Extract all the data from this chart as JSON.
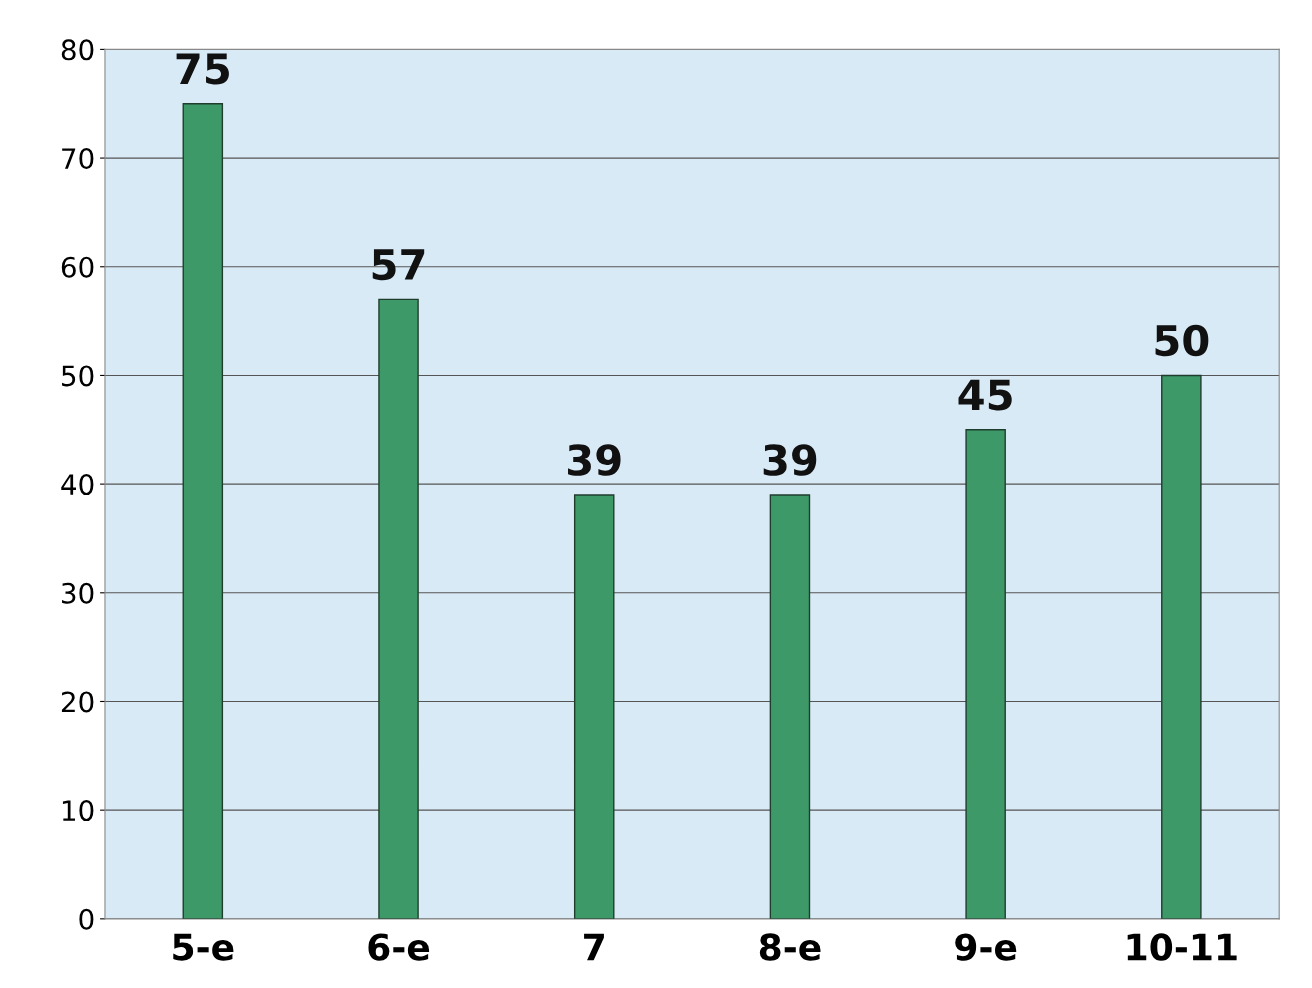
{
  "chart_data": {
    "type": "bar",
    "categories": [
      "5-е",
      "6-е",
      "7",
      "8-е",
      "9-е",
      "10-11"
    ],
    "values": [
      75,
      57,
      39,
      39,
      45,
      50
    ],
    "color": "#3d9a68",
    "ylim": [
      0,
      80
    ],
    "yticks": [
      0,
      10,
      20,
      30,
      40,
      50,
      60,
      70,
      80
    ],
    "grid": "y",
    "data_labels": true
  }
}
